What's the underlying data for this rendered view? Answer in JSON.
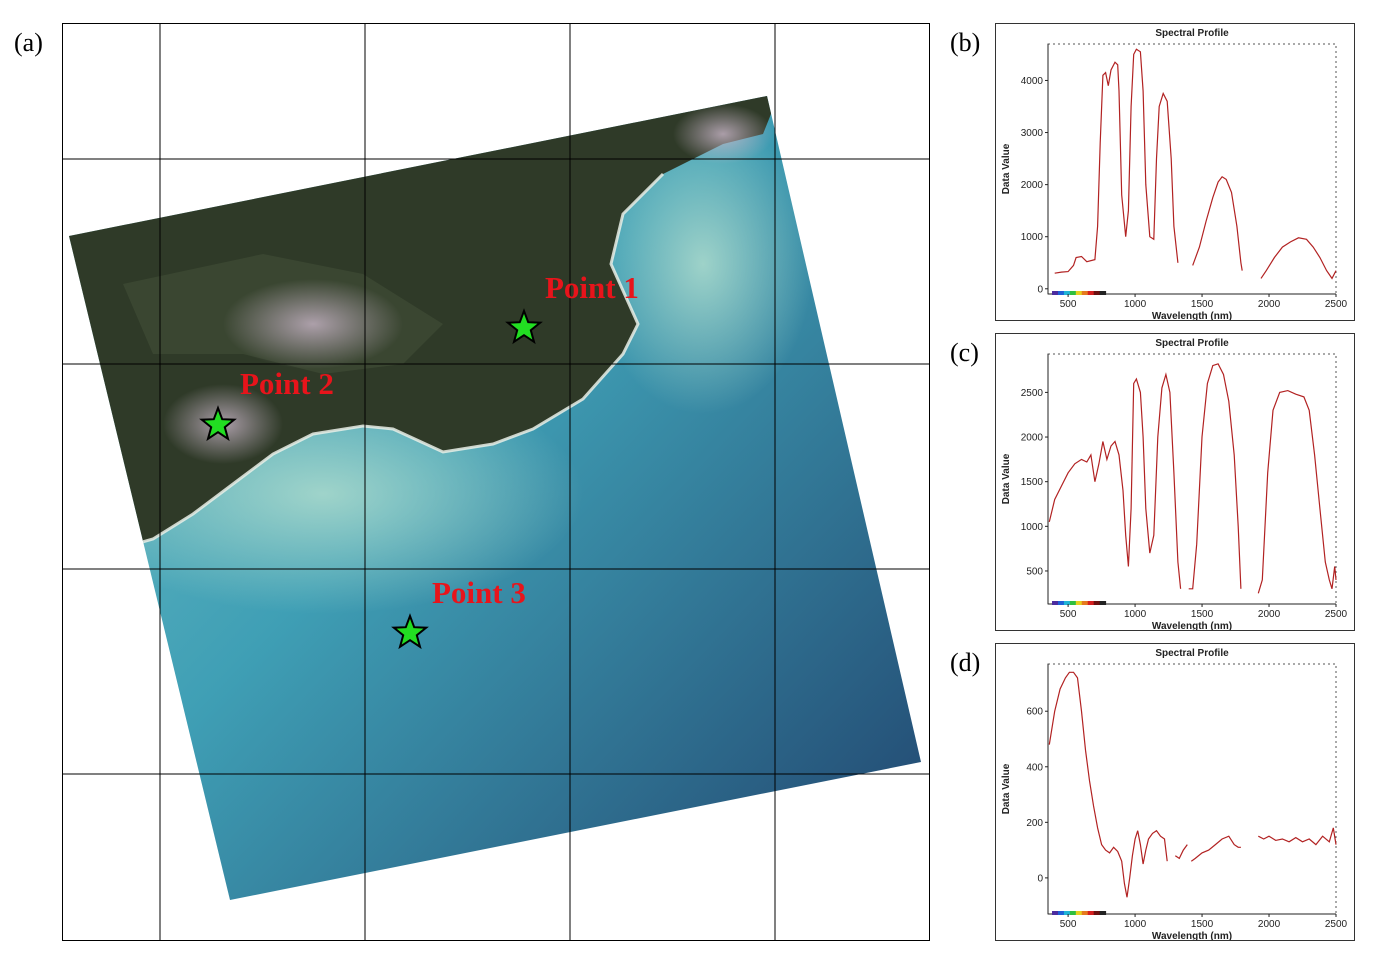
{
  "panel_labels": {
    "a": "(a)",
    "b": "(b)",
    "c": "(c)",
    "d": "(d)"
  },
  "map": {
    "points": [
      {
        "label": "Point 1"
      },
      {
        "label": "Point 2"
      },
      {
        "label": "Point 3"
      }
    ],
    "colors": {
      "marker": "#22dd22",
      "label": "#e8141b",
      "sea": "#3f9fb5",
      "land": "#2f3a28"
    }
  },
  "chart_data": [
    {
      "id": "b",
      "type": "line",
      "title": "Spectral Profile",
      "xlabel": "Wavelength (nm)",
      "ylabel": "Data Value",
      "xlim": [
        350,
        2500
      ],
      "ylim": [
        -100,
        4700
      ],
      "xticks": [
        500,
        1000,
        1500,
        2000,
        2500
      ],
      "yticks": [
        0,
        1000,
        2000,
        3000,
        4000
      ],
      "series": [
        {
          "color": "#b22222",
          "segments": [
            [
              [
                400,
                300
              ],
              [
                450,
                320
              ],
              [
                500,
                330
              ],
              [
                540,
                450
              ],
              [
                560,
                600
              ],
              [
                600,
                620
              ],
              [
                640,
                520
              ],
              [
                700,
                560
              ],
              [
                720,
                1200
              ],
              [
                740,
                2800
              ],
              [
                760,
                4100
              ],
              [
                780,
                4150
              ],
              [
                800,
                3900
              ],
              [
                820,
                4200
              ],
              [
                850,
                4350
              ],
              [
                870,
                4300
              ],
              [
                880,
                3800
              ],
              [
                900,
                1800
              ],
              [
                930,
                1000
              ],
              [
                950,
                1500
              ],
              [
                970,
                3500
              ],
              [
                990,
                4500
              ],
              [
                1010,
                4600
              ],
              [
                1040,
                4550
              ],
              [
                1060,
                3800
              ],
              [
                1080,
                2000
              ],
              [
                1110,
                1000
              ],
              [
                1140,
                950
              ],
              [
                1160,
                2500
              ],
              [
                1180,
                3500
              ],
              [
                1210,
                3750
              ],
              [
                1240,
                3600
              ],
              [
                1270,
                2500
              ],
              [
                1290,
                1200
              ],
              [
                1320,
                500
              ]
            ],
            [
              [
                1430,
                450
              ],
              [
                1480,
                800
              ],
              [
                1530,
                1300
              ],
              [
                1580,
                1750
              ],
              [
                1620,
                2050
              ],
              [
                1650,
                2150
              ],
              [
                1680,
                2100
              ],
              [
                1720,
                1850
              ],
              [
                1760,
                1200
              ],
              [
                1790,
                500
              ],
              [
                1800,
                350
              ]
            ],
            [
              [
                1940,
                200
              ],
              [
                1980,
                350
              ],
              [
                2040,
                600
              ],
              [
                2100,
                800
              ],
              [
                2160,
                900
              ],
              [
                2220,
                980
              ],
              [
                2280,
                950
              ],
              [
                2330,
                800
              ],
              [
                2380,
                600
              ],
              [
                2430,
                350
              ],
              [
                2470,
                200
              ],
              [
                2500,
                350
              ]
            ]
          ]
        }
      ]
    },
    {
      "id": "c",
      "type": "line",
      "title": "Spectral Profile",
      "xlabel": "Wavelength (nm)",
      "ylabel": "Data Value",
      "xlim": [
        350,
        2500
      ],
      "ylim": [
        130,
        2930
      ],
      "xticks": [
        500,
        1000,
        1500,
        2000,
        2500
      ],
      "yticks": [
        500,
        1000,
        1500,
        2000,
        2500
      ],
      "series": [
        {
          "color": "#b22222",
          "segments": [
            [
              [
                360,
                1050
              ],
              [
                400,
                1300
              ],
              [
                450,
                1450
              ],
              [
                500,
                1600
              ],
              [
                550,
                1700
              ],
              [
                600,
                1750
              ],
              [
                640,
                1720
              ],
              [
                670,
                1800
              ],
              [
                700,
                1500
              ],
              [
                730,
                1700
              ],
              [
                760,
                1950
              ],
              [
                790,
                1750
              ],
              [
                820,
                1900
              ],
              [
                850,
                1950
              ],
              [
                880,
                1800
              ],
              [
                910,
                1400
              ],
              [
                930,
                900
              ],
              [
                950,
                550
              ],
              [
                970,
                1200
              ],
              [
                990,
                2600
              ],
              [
                1010,
                2650
              ],
              [
                1040,
                2500
              ],
              [
                1060,
                2000
              ],
              [
                1080,
                1200
              ],
              [
                1110,
                700
              ],
              [
                1140,
                900
              ],
              [
                1170,
                2000
              ],
              [
                1200,
                2550
              ],
              [
                1230,
                2700
              ],
              [
                1260,
                2500
              ],
              [
                1290,
                1600
              ],
              [
                1320,
                600
              ],
              [
                1340,
                300
              ]
            ],
            [
              [
                1400,
                300
              ],
              [
                1430,
                300
              ],
              [
                1460,
                800
              ],
              [
                1500,
                2000
              ],
              [
                1540,
                2600
              ],
              [
                1580,
                2800
              ],
              [
                1620,
                2820
              ],
              [
                1660,
                2700
              ],
              [
                1700,
                2400
              ],
              [
                1740,
                1800
              ],
              [
                1770,
                1000
              ],
              [
                1790,
                300
              ]
            ],
            [
              [
                1920,
                250
              ],
              [
                1950,
                400
              ],
              [
                1990,
                1600
              ],
              [
                2030,
                2300
              ],
              [
                2080,
                2500
              ],
              [
                2140,
                2520
              ],
              [
                2200,
                2480
              ],
              [
                2260,
                2450
              ],
              [
                2300,
                2300
              ],
              [
                2340,
                1800
              ],
              [
                2380,
                1200
              ],
              [
                2420,
                600
              ],
              [
                2450,
                400
              ],
              [
                2470,
                300
              ],
              [
                2490,
                550
              ],
              [
                2500,
                400
              ]
            ]
          ]
        }
      ]
    },
    {
      "id": "d",
      "type": "line",
      "title": "Spectral Profile",
      "xlabel": "Wavelength (nm)",
      "ylabel": "Data Value",
      "xlim": [
        350,
        2500
      ],
      "ylim": [
        -130,
        770
      ],
      "xticks": [
        500,
        1000,
        1500,
        2000,
        2500
      ],
      "yticks": [
        0,
        200,
        400,
        600
      ],
      "series": [
        {
          "color": "#b22222",
          "segments": [
            [
              [
                360,
                480
              ],
              [
                400,
                600
              ],
              [
                440,
                680
              ],
              [
                480,
                720
              ],
              [
                510,
                740
              ],
              [
                540,
                740
              ],
              [
                570,
                720
              ],
              [
                600,
                600
              ],
              [
                630,
                460
              ],
              [
                660,
                350
              ],
              [
                690,
                260
              ],
              [
                720,
                180
              ],
              [
                750,
                120
              ],
              [
                780,
                100
              ],
              [
                810,
                90
              ],
              [
                840,
                110
              ],
              [
                870,
                95
              ],
              [
                900,
                60
              ],
              [
                920,
                -20
              ],
              [
                940,
                -70
              ],
              [
                960,
                0
              ],
              [
                980,
                80
              ],
              [
                1000,
                140
              ],
              [
                1020,
                170
              ],
              [
                1040,
                120
              ],
              [
                1060,
                50
              ],
              [
                1080,
                100
              ],
              [
                1100,
                140
              ],
              [
                1130,
                160
              ],
              [
                1160,
                170
              ],
              [
                1190,
                150
              ],
              [
                1220,
                140
              ],
              [
                1240,
                60
              ]
            ],
            [
              [
                1300,
                80
              ],
              [
                1330,
                70
              ],
              [
                1360,
                100
              ],
              [
                1390,
                120
              ]
            ],
            [
              [
                1420,
                60
              ],
              [
                1450,
                70
              ],
              [
                1500,
                90
              ],
              [
                1550,
                100
              ],
              [
                1600,
                120
              ],
              [
                1650,
                140
              ],
              [
                1700,
                150
              ],
              [
                1740,
                120
              ],
              [
                1770,
                110
              ],
              [
                1790,
                110
              ]
            ],
            [
              [
                1920,
                150
              ],
              [
                1960,
                140
              ],
              [
                2000,
                150
              ],
              [
                2050,
                135
              ],
              [
                2100,
                140
              ],
              [
                2150,
                130
              ],
              [
                2200,
                145
              ],
              [
                2250,
                130
              ],
              [
                2300,
                140
              ],
              [
                2350,
                120
              ],
              [
                2400,
                150
              ],
              [
                2450,
                130
              ],
              [
                2480,
                180
              ],
              [
                2500,
                120
              ]
            ]
          ]
        }
      ]
    }
  ]
}
